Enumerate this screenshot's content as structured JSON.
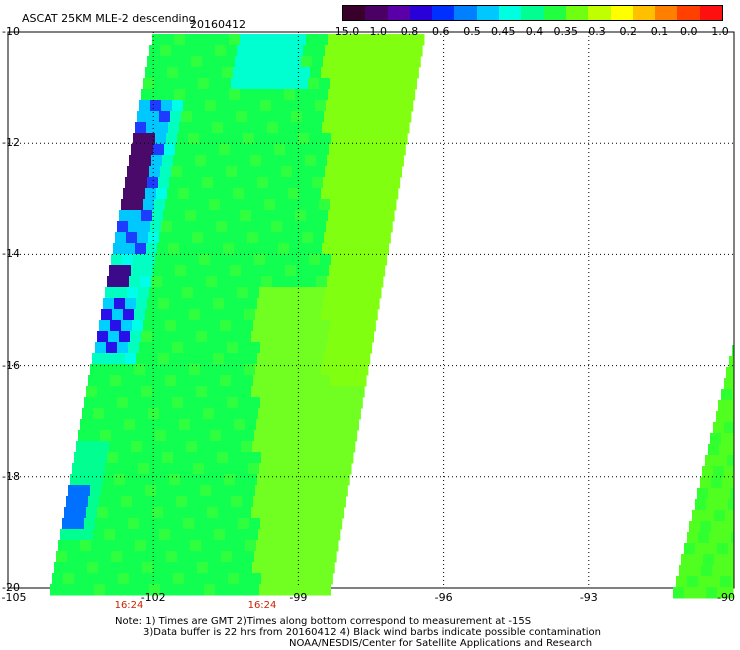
{
  "title": {
    "product": "ASCAT 25KM MLE-2 descending",
    "date": "20160412"
  },
  "colorbar": {
    "labels": [
      "-15.0",
      "-1.0",
      "-0.8",
      "-0.6",
      "-0.5",
      "-0.45",
      "-0.4",
      "-0.35",
      "-0.3",
      "-0.2",
      "-0.1",
      "0.0",
      "1.0"
    ],
    "colors": [
      "#38002a",
      "#4b0066",
      "#5a00a8",
      "#2a00d8",
      "#0030ff",
      "#0080ff",
      "#00c8ff",
      "#00ffe0",
      "#00ff90",
      "#20ff40",
      "#70ff10",
      "#c0ff00",
      "#ffff00",
      "#ffc000",
      "#ff8000",
      "#ff4000",
      "#ff1010"
    ]
  },
  "latitudes": [
    "-10",
    "-12",
    "-14",
    "-16",
    "-18",
    "-20"
  ],
  "longitudes": [
    "-105",
    "-102",
    "-99",
    "-96",
    "-93",
    "-90"
  ],
  "times": [
    "16:24",
    "16:24"
  ],
  "notes": {
    "line1": "Note: 1) Times are GMT 2)Times along bottom correspond to measurement at -15S",
    "line2": "3)Data buffer is 22 hrs from 20160412 4) Black wind barbs indicate possible contamination",
    "line3": "NOAA/NESDIS/Center for Satellite Applications and Research"
  }
}
